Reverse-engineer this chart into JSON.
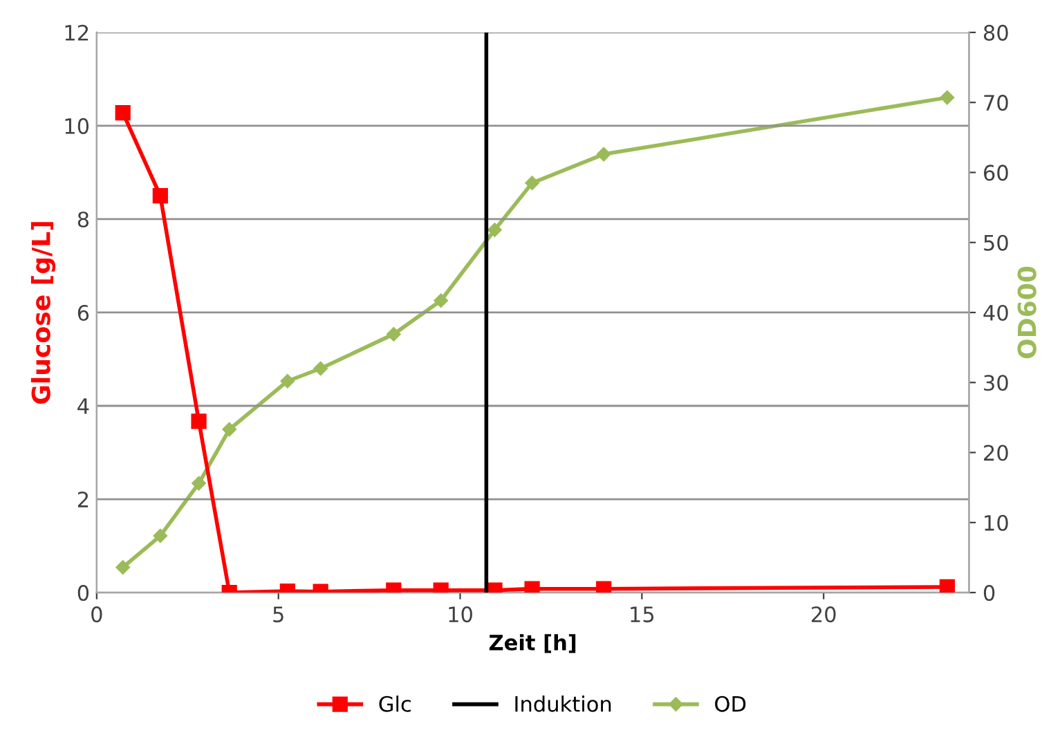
{
  "chart_data": {
    "type": "line",
    "xlabel": "Zeit [h]",
    "ylabel": "Glucose [g/L]",
    "y2label": "OD600",
    "x": [
      0.72,
      1.75,
      2.81,
      3.65,
      5.25,
      6.16,
      8.17,
      9.47,
      10.95,
      11.98,
      13.95,
      23.4
    ],
    "series": [
      {
        "name": "Glc",
        "color": "#ff0000",
        "marker": "square",
        "values": [
          10.28,
          8.5,
          3.67,
          0,
          0.03,
          0.02,
          0.05,
          0.05,
          0.05,
          0.08,
          0.08,
          0.12
        ]
      },
      {
        "name": "OD",
        "color": "#9bbb59",
        "marker": "diamond",
        "axis": "y2",
        "values": [
          3.6,
          8.1,
          15.6,
          23.3,
          30.2,
          32.0,
          36.9,
          41.7,
          51.8,
          58.5,
          62.6,
          70.7
        ]
      }
    ],
    "ref_lines": [
      {
        "axis": "x",
        "value": 10.72,
        "label": "Induktion",
        "color": "#000000"
      }
    ],
    "xlim": [
      0,
      24
    ],
    "xticks": [
      0,
      5,
      10,
      15,
      20
    ],
    "ylim": [
      0,
      12
    ],
    "yticks": [
      0,
      2,
      4,
      6,
      8,
      10,
      12
    ],
    "y2lim": [
      0,
      80
    ],
    "y2ticks": [
      0,
      10,
      20,
      30,
      40,
      50,
      60,
      70,
      80
    ],
    "grid": "y",
    "legend": "bottom",
    "line_style": "solid"
  }
}
